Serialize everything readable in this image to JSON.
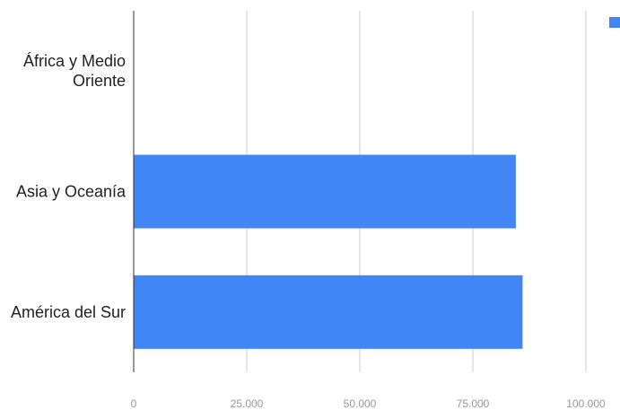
{
  "chart_data": {
    "type": "bar",
    "orientation": "horizontal",
    "categories": [
      [
        "África y Medio",
        "Oriente"
      ],
      [
        "Asia y Oceanía"
      ],
      [
        "América del Sur"
      ]
    ],
    "series": [
      {
        "values": [
          0,
          84500,
          86000
        ],
        "color": "#4285f4"
      }
    ],
    "x_ticks": [
      "0",
      "25.000",
      "50.000",
      "75.000",
      "100.000"
    ],
    "xlim": [
      0,
      100000
    ],
    "grid": true,
    "legend_position": "top-right",
    "legend_clipped": true
  }
}
